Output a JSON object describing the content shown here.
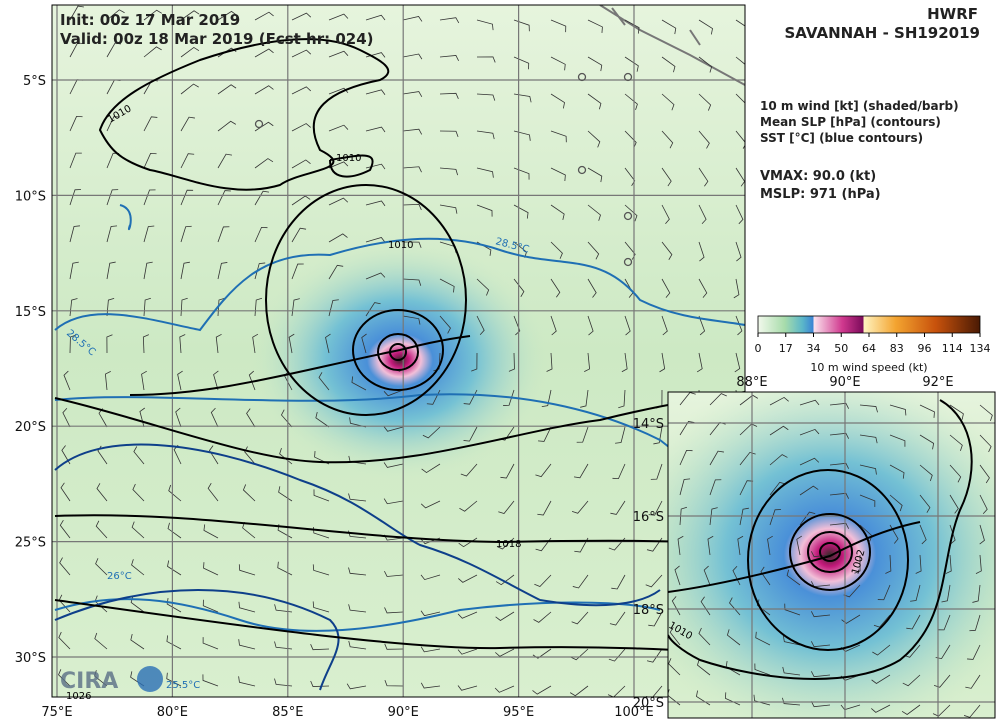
{
  "header": {
    "init": "Init:   00z 17 Mar 2019",
    "valid": "Valid: 00z 18 Mar 2019 (Fcst hr: 024)",
    "model": "HWRF",
    "storm": "SAVANNAH - SH192019"
  },
  "legend": [
    "10 m wind [kt] (shaded/barb)",
    "Mean SLP [hPa] (contours)",
    "SST [°C] (blue contours)"
  ],
  "stats": [
    "VMAX:  90.0 (kt)",
    "MSLP:  971 (hPa)"
  ],
  "colorbar": {
    "ticks": [
      0,
      17,
      34,
      50,
      64,
      83,
      96,
      114,
      134
    ],
    "label": "10 m wind speed (kt)"
  },
  "map": {
    "lat_labels": [
      "5°S",
      "10°S",
      "15°S",
      "20°S",
      "25°S",
      "30°S"
    ],
    "lon_labels": [
      "75°E",
      "80°E",
      "85°E",
      "90°E",
      "95°E",
      "100°E"
    ]
  },
  "inset": {
    "lon_labels": [
      "88°E",
      "90°E",
      "92°E"
    ],
    "lat_labels": [
      "14°S",
      "16°S",
      "18°S",
      "20°S"
    ]
  },
  "contour_labels": [
    "1010",
    "1010",
    "1010",
    "28.5°C",
    "28.5°C",
    "1018",
    "26°C",
    "1026",
    "1002",
    "1010",
    "25.5°C"
  ]
}
